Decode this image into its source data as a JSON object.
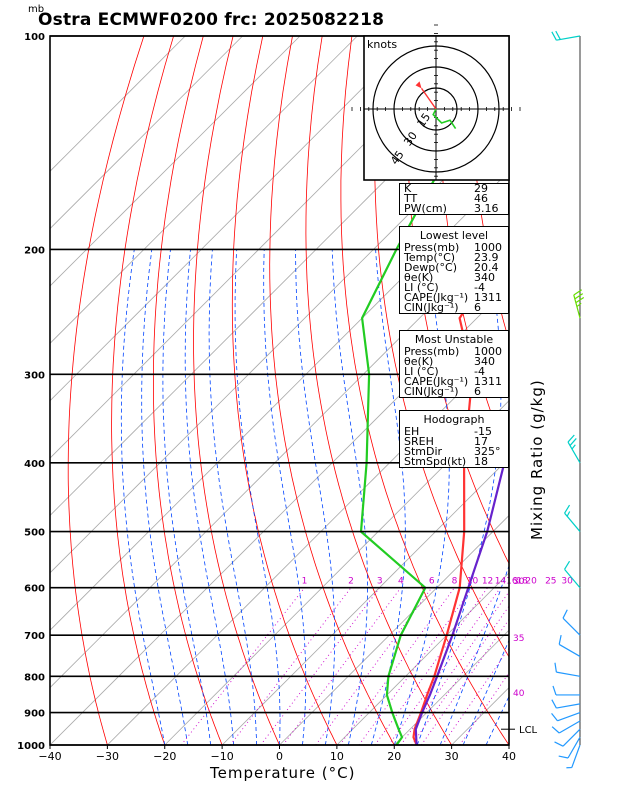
{
  "title": "Ostra ECMWF0200  frc: 2025082218",
  "pressure_unit": "mb",
  "x_axis_label": "Temperature (°C)",
  "right_axis_label": "Mixing Ratio (g/kg)",
  "hodograph": {
    "unit_label": "knots",
    "ring_labels": [
      "15",
      "30",
      "45"
    ]
  },
  "indices_panel": {
    "rows": [
      [
        "K",
        "29"
      ],
      [
        "TT",
        "46"
      ],
      [
        "PW(cm)",
        "3.16"
      ]
    ]
  },
  "lowest_level_panel": {
    "header": "Lowest level",
    "rows": [
      [
        "Press(mb)",
        "1000"
      ],
      [
        "Temp(°C)",
        "23.9"
      ],
      [
        "Dewp(°C)",
        "20.4"
      ],
      [
        "θe(K)",
        "340"
      ],
      [
        "LI (°C)",
        "-4"
      ],
      [
        "CAPE(Jkg⁻¹)",
        "1311"
      ],
      [
        "CIN(Jkg⁻¹)",
        "6"
      ]
    ]
  },
  "most_unstable_panel": {
    "header": "Most Unstable",
    "rows": [
      [
        "Press(mb)",
        "1000"
      ],
      [
        "θe(K)",
        "340"
      ],
      [
        "LI (°C)",
        "-4"
      ],
      [
        "CAPE(Jkg⁻¹)",
        "1311"
      ],
      [
        "CIN(Jkg⁻¹)",
        "6"
      ]
    ]
  },
  "hodograph_panel": {
    "header": "Hodograph",
    "rows": [
      [
        "EH",
        "-15"
      ],
      [
        "SREH",
        "17"
      ],
      [
        "",
        ""
      ],
      [
        "StmDir",
        "325°"
      ],
      [
        "StmSpd(kt)",
        "18"
      ]
    ]
  },
  "colors": {
    "temperature": "#ff3333",
    "dewpoint": "#22cc22",
    "parcel": "#6622cc",
    "isotherm_dry_adiabat": "#ff0000",
    "moist_adiabat": "#0044ff",
    "mixing_ratio": "#cc00cc",
    "skew_isotherm": "#aaaaaa"
  },
  "chart_data": {
    "type": "line",
    "x_axis": {
      "label": "Temperature (°C)",
      "range": [
        -40,
        40
      ],
      "ticks": [
        -40,
        -30,
        -20,
        -10,
        0,
        10,
        20,
        30,
        40
      ]
    },
    "y_axis": {
      "label": "mb",
      "scale": "log",
      "range": [
        1000,
        100
      ],
      "ticks": [
        100,
        200,
        300,
        400,
        500,
        600,
        700,
        800,
        900,
        1000
      ]
    },
    "mixing_ratio_labels": [
      "1",
      "2",
      "3",
      "4",
      "6",
      "8",
      "10",
      "12",
      "14",
      "16",
      "18",
      "20",
      "25",
      "30"
    ],
    "theta_labels": [
      "30",
      "35",
      "40"
    ],
    "lcl_label": "LCL",
    "lcl_pressure": 950,
    "series": [
      {
        "name": "temperature",
        "points": [
          [
            1000,
            23.9
          ],
          [
            975,
            22
          ],
          [
            950,
            20.8
          ],
          [
            900,
            19
          ],
          [
            850,
            17
          ],
          [
            800,
            15
          ],
          [
            700,
            10
          ],
          [
            600,
            4
          ],
          [
            500,
            -5
          ],
          [
            400,
            -17
          ],
          [
            300,
            -31
          ],
          [
            250,
            -43
          ],
          [
            200,
            -47
          ],
          [
            100,
            -62
          ]
        ]
      },
      {
        "name": "dewpoint",
        "points": [
          [
            1000,
            20.4
          ],
          [
            975,
            20
          ],
          [
            950,
            18
          ],
          [
            900,
            14
          ],
          [
            850,
            10
          ],
          [
            800,
            7
          ],
          [
            700,
            2
          ],
          [
            600,
            -2
          ],
          [
            500,
            -23
          ],
          [
            400,
            -34
          ],
          [
            300,
            -49
          ],
          [
            250,
            -60
          ],
          [
            200,
            -66
          ],
          [
            100,
            -83
          ]
        ]
      },
      {
        "name": "parcel",
        "points": [
          [
            1000,
            23.9
          ],
          [
            950,
            21
          ],
          [
            900,
            19.2
          ],
          [
            850,
            17.5
          ],
          [
            800,
            15.5
          ],
          [
            700,
            11
          ],
          [
            600,
            5.5
          ],
          [
            500,
            -1
          ],
          [
            400,
            -10
          ],
          [
            300,
            -24
          ],
          [
            250,
            -34
          ],
          [
            200,
            -46
          ],
          [
            100,
            -78
          ]
        ]
      }
    ],
    "wind_barbs": [
      {
        "p": 1000,
        "dir": 200,
        "spd": 5
      },
      {
        "p": 975,
        "dir": 210,
        "spd": 10
      },
      {
        "p": 950,
        "dir": 225,
        "spd": 10
      },
      {
        "p": 925,
        "dir": 240,
        "spd": 10
      },
      {
        "p": 900,
        "dir": 250,
        "spd": 10
      },
      {
        "p": 875,
        "dir": 260,
        "spd": 10
      },
      {
        "p": 850,
        "dir": 270,
        "spd": 10
      },
      {
        "p": 800,
        "dir": 280,
        "spd": 10
      },
      {
        "p": 750,
        "dir": 300,
        "spd": 10
      },
      {
        "p": 700,
        "dir": 315,
        "spd": 10
      },
      {
        "p": 600,
        "dir": 320,
        "spd": 10
      },
      {
        "p": 500,
        "dir": 320,
        "spd": 15
      },
      {
        "p": 400,
        "dir": 330,
        "spd": 25
      },
      {
        "p": 250,
        "dir": 345,
        "spd": 35
      },
      {
        "p": 100,
        "dir": 260,
        "spd": 20
      }
    ],
    "hodograph_trace": [
      [
        0,
        0
      ],
      [
        -2,
        4
      ],
      [
        4,
        10
      ],
      [
        10,
        8
      ],
      [
        14,
        14
      ]
    ],
    "storm_motion": {
      "dir": 325,
      "spd": 18
    }
  }
}
